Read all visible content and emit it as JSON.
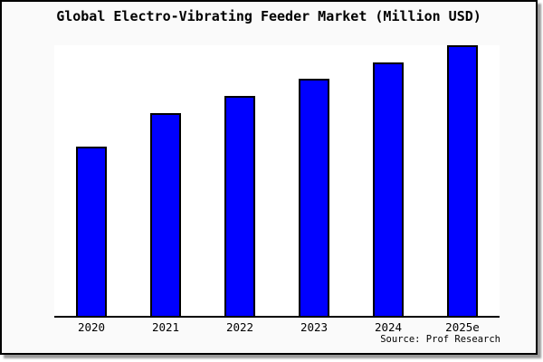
{
  "figure": {
    "background_color": "#fafafa",
    "plot_background_color": "#ffffff",
    "border_color": "#000000",
    "title": "Global Electro-Vibrating Feeder Market (Million USD)",
    "source_credit": "Source: Prof Research"
  },
  "chart_data": {
    "type": "bar",
    "title": "Global Electro-Vibrating Feeder Market (Million USD)",
    "unit": "Million USD",
    "categories": [
      "2020",
      "2021",
      "2022",
      "2023",
      "2024",
      "2025e"
    ],
    "values_relative": [
      0.625,
      0.75,
      0.8125,
      0.875,
      0.9375,
      1.0
    ],
    "xlabel": "",
    "ylabel": "",
    "ylim": [
      0,
      1
    ],
    "y_axis_labels_visible": false,
    "grid": false,
    "legend": false,
    "bar_color": "#0000ff",
    "bar_border_color": "#000000",
    "axis_color": "#000000",
    "annotation": "Source: Prof Research"
  }
}
